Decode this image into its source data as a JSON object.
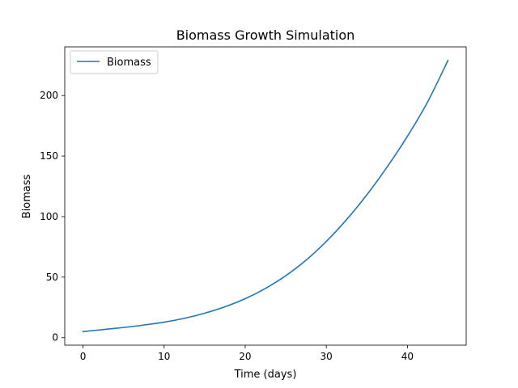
{
  "colors": {
    "series": "#1f77b4",
    "axis": "#000000",
    "legend_border": "#cccccc",
    "background": "#ffffff"
  },
  "chart_data": {
    "type": "line",
    "title": "Biomass Growth Simulation",
    "xlabel": "Time (days)",
    "ylabel": "Biomass",
    "xlim": [
      -2.25,
      47.25
    ],
    "ylim": [
      -6.2,
      240.2
    ],
    "xticks": [
      0,
      10,
      20,
      30,
      40
    ],
    "yticks": [
      0,
      50,
      100,
      150,
      200
    ],
    "grid": false,
    "legend": {
      "placement": "upper-left",
      "entries": [
        "Biomass"
      ]
    },
    "series": [
      {
        "name": "Biomass",
        "color": "#1f77b4",
        "x": [
          0,
          2.5,
          5,
          7.5,
          10,
          12.5,
          15,
          17.5,
          20,
          22.5,
          25,
          27.5,
          30,
          32.5,
          35,
          37.5,
          40,
          42.5,
          45
        ],
        "y": [
          5,
          6.7,
          8.4,
          10.4,
          12.8,
          16.0,
          20.2,
          25.5,
          32.2,
          40.7,
          51.2,
          64.0,
          79.5,
          97.5,
          118.0,
          141.0,
          166.3,
          194.8,
          229
        ]
      }
    ]
  }
}
